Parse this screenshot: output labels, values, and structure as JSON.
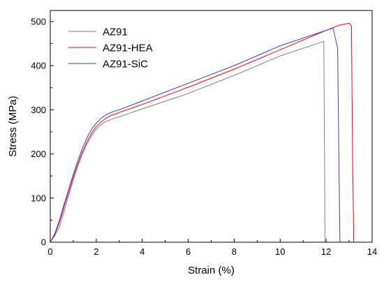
{
  "chart_data": {
    "type": "line",
    "xlabel": "Strain (%)",
    "ylabel": "Stress (MPa)",
    "xlim": [
      0,
      14
    ],
    "ylim": [
      0,
      525
    ],
    "xticks": [
      0,
      2,
      4,
      6,
      8,
      10,
      12,
      14
    ],
    "yticks": [
      0,
      100,
      200,
      300,
      400,
      500
    ],
    "grid": false,
    "legend_position": "top-left",
    "series": [
      {
        "name": "AZ91",
        "color": "#808080",
        "x": [
          0,
          0.2,
          0.4,
          0.6,
          0.8,
          1.0,
          1.2,
          1.4,
          1.6,
          1.8,
          2.0,
          2.2,
          2.4,
          2.6,
          2.8,
          3.0,
          4.0,
          6.0,
          8.0,
          10.0,
          11.9,
          11.93,
          11.95
        ],
        "y": [
          0,
          15,
          35,
          70,
          105,
          140,
          172,
          200,
          223,
          242,
          256,
          266,
          273,
          277,
          281,
          284,
          302,
          337,
          378,
          422,
          455,
          200,
          0
        ]
      },
      {
        "name": "AZ91-HEA",
        "color": "#ff0000",
        "x": [
          0,
          0.2,
          0.4,
          0.6,
          0.8,
          1.0,
          1.2,
          1.4,
          1.6,
          1.8,
          2.0,
          2.2,
          2.4,
          2.6,
          2.8,
          3.0,
          4.0,
          6.0,
          8.0,
          10.0,
          12.0,
          12.6,
          13.0,
          13.1,
          13.15,
          13.2
        ],
        "y": [
          0,
          18,
          45,
          80,
          113,
          147,
          178,
          205,
          228,
          247,
          262,
          272,
          280,
          286,
          290,
          294,
          312,
          351,
          392,
          436,
          480,
          492,
          496,
          490,
          200,
          0
        ]
      },
      {
        "name": "AZ91-SiC",
        "color": "#3a3ae0",
        "x": [
          0,
          0.2,
          0.4,
          0.6,
          0.8,
          1.0,
          1.2,
          1.4,
          1.6,
          1.8,
          2.0,
          2.2,
          2.4,
          2.6,
          2.8,
          3.0,
          4.0,
          6.0,
          8.0,
          10.0,
          12.0,
          12.3,
          12.5,
          12.55,
          12.6
        ],
        "y": [
          0,
          20,
          50,
          86,
          120,
          153,
          185,
          213,
          237,
          256,
          270,
          280,
          288,
          293,
          297,
          300,
          320,
          360,
          400,
          445,
          480,
          485,
          440,
          200,
          0
        ]
      }
    ]
  }
}
